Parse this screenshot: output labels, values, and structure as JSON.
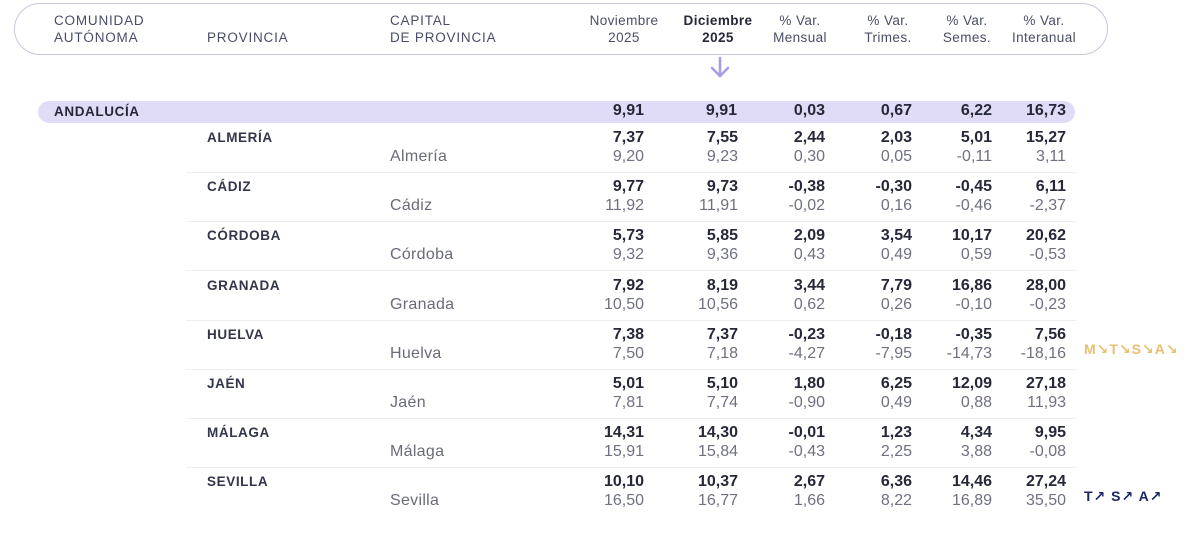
{
  "header": {
    "columns": [
      {
        "line1": "COMUNIDAD",
        "line2": "AUTÓNOMA"
      },
      {
        "line1": "",
        "line2": "PROVINCIA"
      },
      {
        "line1": "CAPITAL",
        "line2": "DE PROVINCIA"
      },
      {
        "line1": "Noviembre",
        "line2": "2025"
      },
      {
        "line1": "Diciembre",
        "line2": "2025"
      },
      {
        "line1": "% Var.",
        "line2": "Mensual"
      },
      {
        "line1": "% Var.",
        "line2": "Trimes."
      },
      {
        "line1": "% Var.",
        "line2": "Semes."
      },
      {
        "line1": "% Var.",
        "line2": "Interanual"
      }
    ],
    "highlighted_column": "Diciembre 2025"
  },
  "colors": {
    "accent_band": "#e0dcf8",
    "arrow": "#a79ee6",
    "badge_down": "#e6c06f",
    "badge_up": "#1b2466"
  },
  "region": {
    "name": "ANDALUCÍA",
    "values": [
      "9,91",
      "9,91",
      "0,03",
      "0,67",
      "6,22",
      "16,73"
    ]
  },
  "provinces": [
    {
      "name": "ALMERÍA",
      "capital": "Almería",
      "prov": [
        "7,37",
        "7,55",
        "2,44",
        "2,03",
        "5,01",
        "15,27"
      ],
      "cap": [
        "9,20",
        "9,23",
        "0,30",
        "0,05",
        "-0,11",
        "3,11"
      ]
    },
    {
      "name": "CÁDIZ",
      "capital": "Cádiz",
      "prov": [
        "9,77",
        "9,73",
        "-0,38",
        "-0,30",
        "-0,45",
        "6,11"
      ],
      "cap": [
        "11,92",
        "11,91",
        "-0,02",
        "0,16",
        "-0,46",
        "-2,37"
      ]
    },
    {
      "name": "CÓRDOBA",
      "capital": "Córdoba",
      "prov": [
        "5,73",
        "5,85",
        "2,09",
        "3,54",
        "10,17",
        "20,62"
      ],
      "cap": [
        "9,32",
        "9,36",
        "0,43",
        "0,49",
        "0,59",
        "-0,53"
      ]
    },
    {
      "name": "GRANADA",
      "capital": "Granada",
      "prov": [
        "7,92",
        "8,19",
        "3,44",
        "7,79",
        "16,86",
        "28,00"
      ],
      "cap": [
        "10,50",
        "10,56",
        "0,62",
        "0,26",
        "-0,10",
        "-0,23"
      ]
    },
    {
      "name": "HUELVA",
      "capital": "Huelva",
      "prov": [
        "7,38",
        "7,37",
        "-0,23",
        "-0,18",
        "-0,35",
        "7,56"
      ],
      "cap": [
        "7,50",
        "7,18",
        "-4,27",
        "-7,95",
        "-14,73",
        "-18,16"
      ],
      "badges": {
        "type": "down",
        "text": "M↘T↘S↘A↘"
      }
    },
    {
      "name": "JAÉN",
      "capital": "Jaén",
      "prov": [
        "5,01",
        "5,10",
        "1,80",
        "6,25",
        "12,09",
        "27,18"
      ],
      "cap": [
        "7,81",
        "7,74",
        "-0,90",
        "0,49",
        "0,88",
        "11,93"
      ]
    },
    {
      "name": "MÁLAGA",
      "capital": "Málaga",
      "prov": [
        "14,31",
        "14,30",
        "-0,01",
        "1,23",
        "4,34",
        "9,95"
      ],
      "cap": [
        "15,91",
        "15,84",
        "-0,43",
        "2,25",
        "3,88",
        "-0,08"
      ]
    },
    {
      "name": "SEVILLA",
      "capital": "Sevilla",
      "prov": [
        "10,10",
        "10,37",
        "2,67",
        "6,36",
        "14,46",
        "27,24"
      ],
      "cap": [
        "16,50",
        "16,77",
        "1,66",
        "8,22",
        "16,89",
        "35,50"
      ],
      "badges": {
        "type": "up",
        "text": "T↗ S↗ A↗"
      }
    }
  ]
}
